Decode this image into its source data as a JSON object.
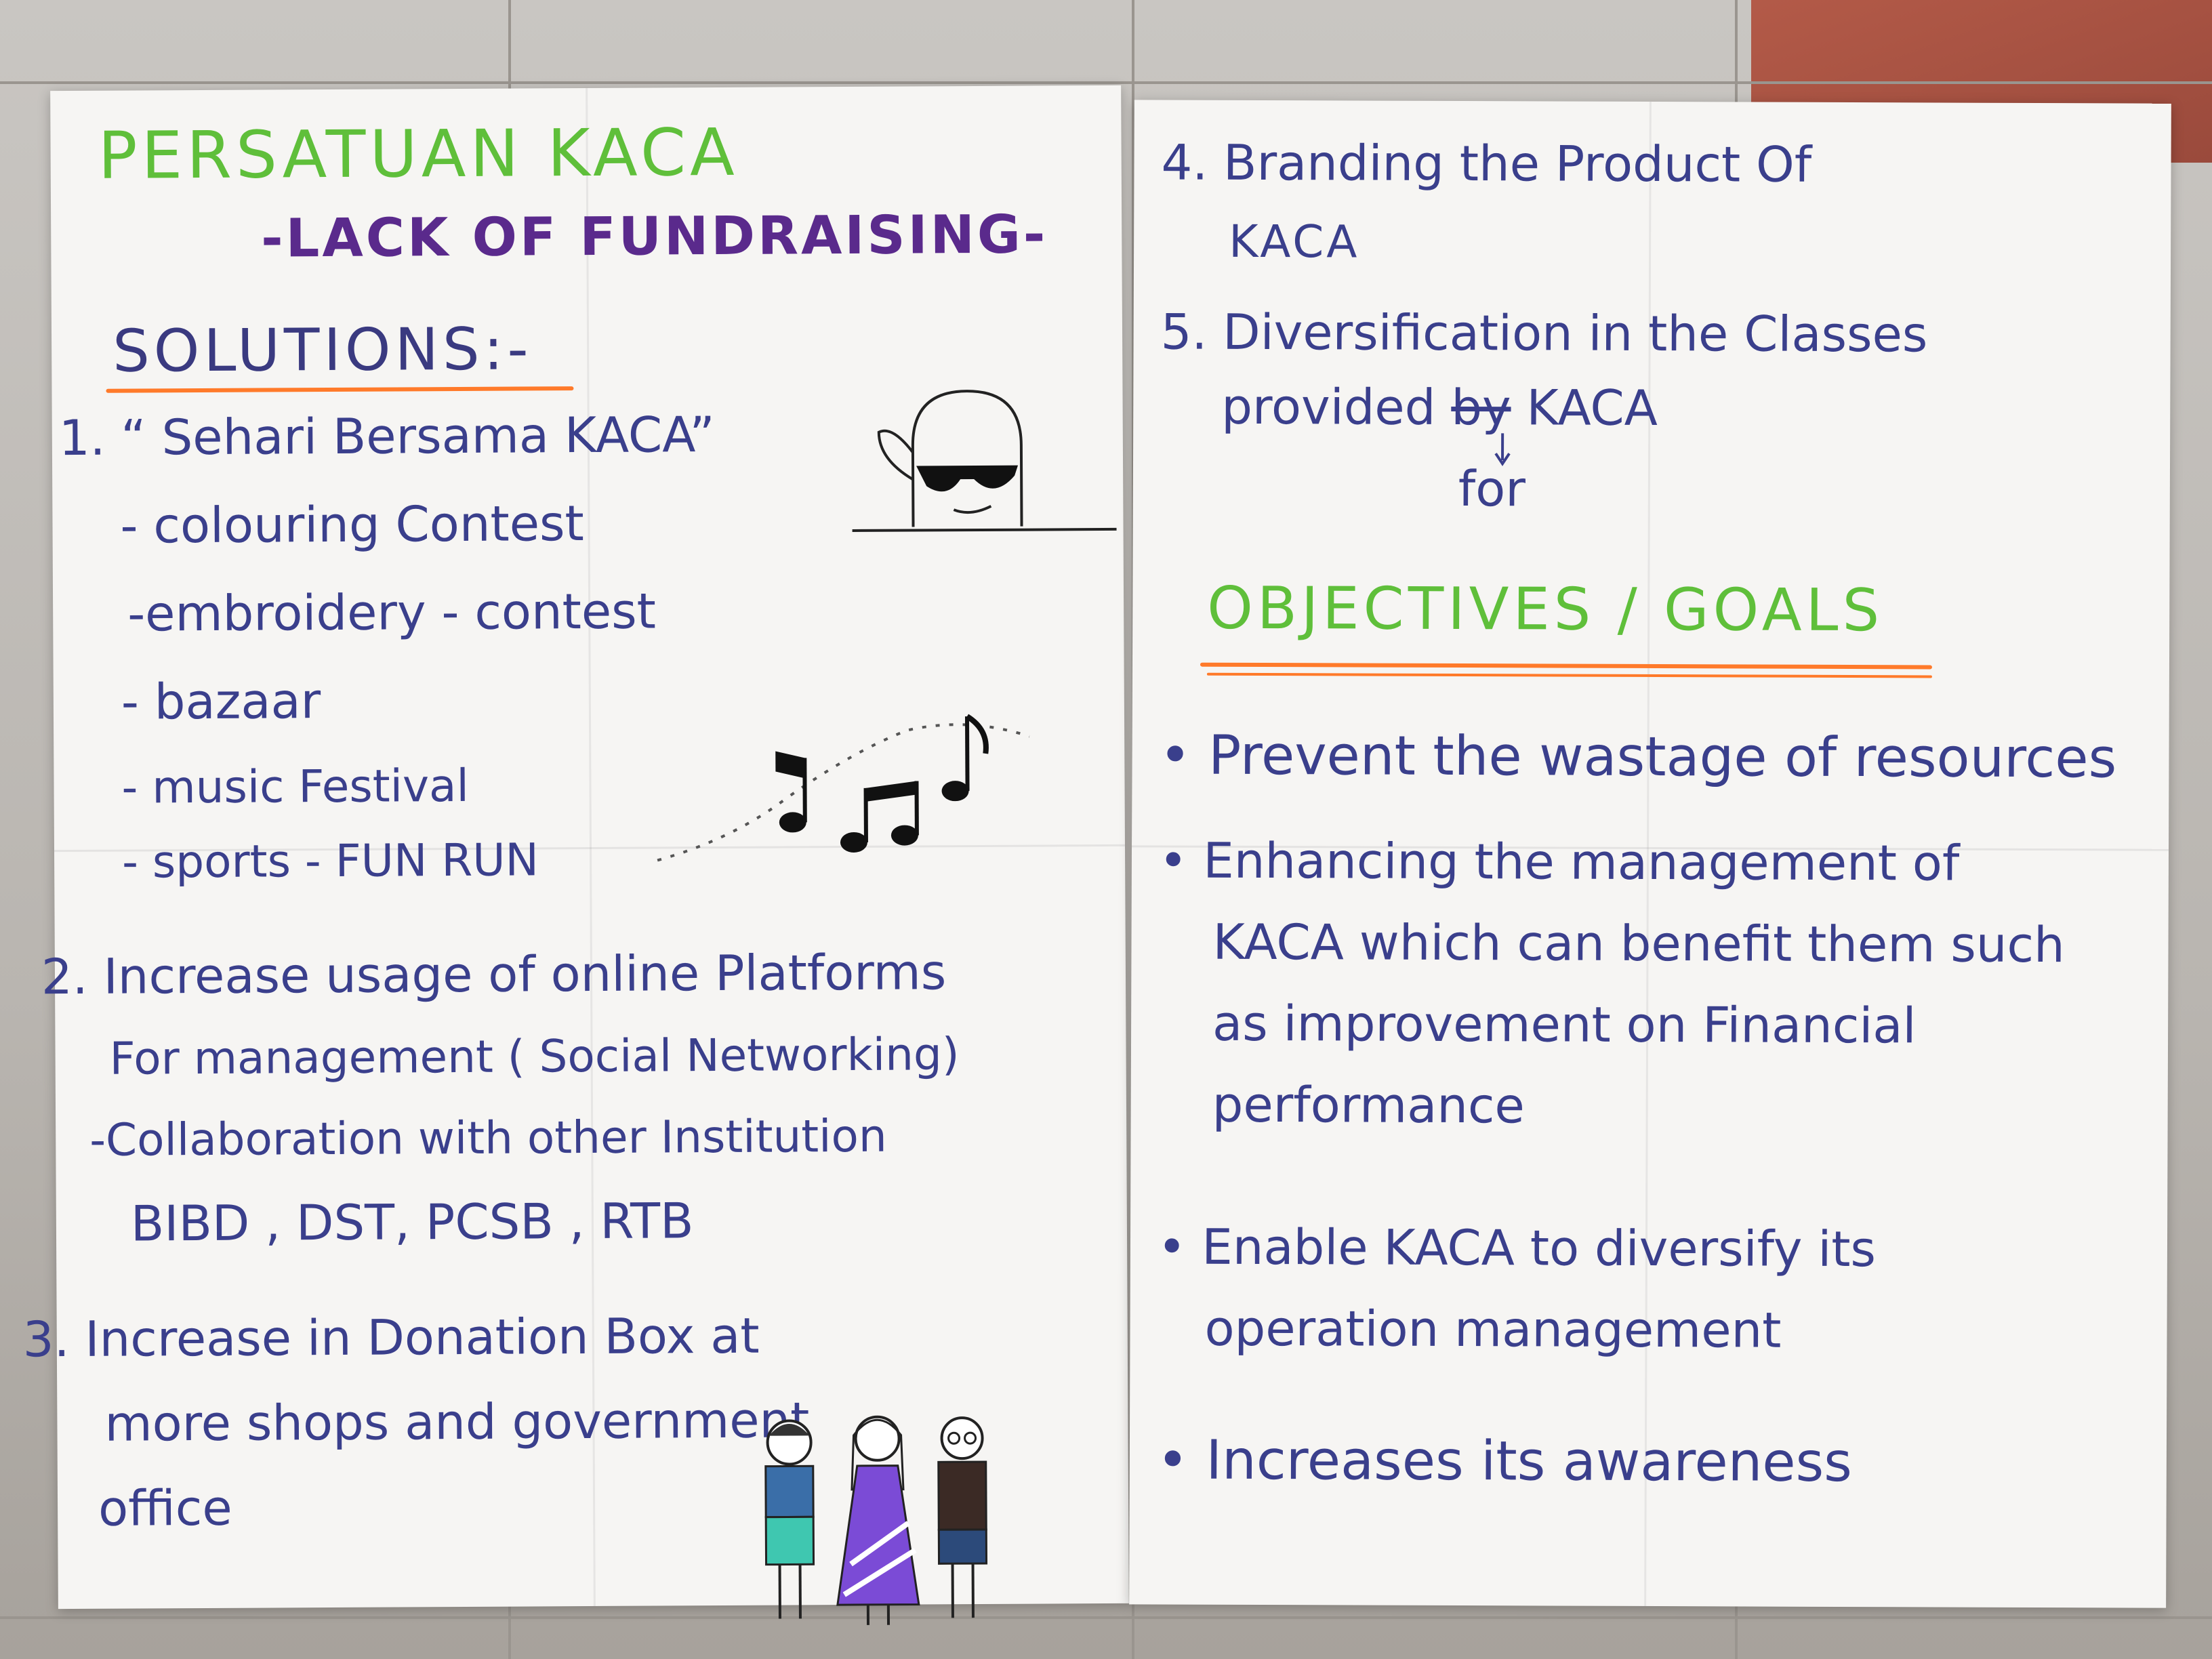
{
  "left_sheet": {
    "title": "PERSATUAN KACA",
    "subtitle": "-LACK OF FUNDRAISING-",
    "solutions_heading": "SOLUTIONS:-",
    "s1_title": "1. “ Sehari Bersama KACA”",
    "s1_items": [
      "- colouring Contest",
      "-embroidery - contest",
      "- bazaar",
      "- music Festival",
      "- sports - FUN RUN"
    ],
    "s2_lines": [
      "2. Increase usage of online Platforms",
      "For management ( Social Networking)",
      "-Collaboration with other Institution",
      "BIBD , DST, PCSB , RTB"
    ],
    "s3_lines": [
      "3. Increase in Donation Box at",
      "more shops and government",
      "office"
    ]
  },
  "right_sheet": {
    "s4_lines": [
      "4. Branding the Product Of",
      "KACA"
    ],
    "s5_line1": "5. Diversification in the Classes",
    "s5_provided": "provided",
    "s5_struck": "by",
    "s5_kaca": "KACA",
    "s5_correction": "for",
    "objectives_heading": "OBJECTIVES / GOALS",
    "bullets": [
      [
        "• Prevent the wastage of resources"
      ],
      [
        "• Enhancing the management of",
        "KACA which can benefit them such",
        "as improvement on Financial",
        "performance"
      ],
      [
        "• Enable KACA to diversify its",
        "operation management"
      ],
      [
        "• Increases its awareness"
      ]
    ]
  },
  "colors": {
    "title_green": "#5fbf3a",
    "subtitle_purple": "#5a2a8c",
    "text_blue": "#3a3f8c",
    "underline_orange": "#ff7a2a"
  },
  "icons": [
    "ghost-with-sunglasses-icon",
    "music-notes-icon",
    "three-people-drawing-icon"
  ]
}
